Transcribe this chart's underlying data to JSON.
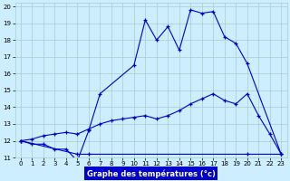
{
  "xlabel": "Graphe des températures (°c)",
  "xlim": [
    -0.5,
    23.5
  ],
  "ylim": [
    11,
    20.2
  ],
  "xticks": [
    0,
    1,
    2,
    3,
    4,
    5,
    6,
    7,
    8,
    9,
    10,
    11,
    12,
    13,
    14,
    15,
    16,
    17,
    18,
    19,
    20,
    21,
    22,
    23
  ],
  "yticks": [
    11,
    12,
    13,
    14,
    15,
    16,
    17,
    18,
    19,
    20
  ],
  "bg_color": "#cceeff",
  "line_color": "#0000cc",
  "grid_color": "#aacccc",
  "line1_x": [
    0,
    1,
    2,
    3,
    4,
    5,
    6,
    7,
    10,
    11,
    12,
    13,
    14,
    15,
    16,
    17,
    18,
    19,
    20,
    23
  ],
  "line1_y": [
    12,
    11.8,
    11.8,
    11.5,
    11.5,
    10.8,
    12.6,
    14.8,
    16.5,
    19.2,
    18.0,
    18.8,
    17.4,
    19.8,
    19.6,
    19.7,
    18.2,
    17.8,
    16.6,
    11.2
  ],
  "line2_x": [
    0,
    1,
    2,
    3,
    4,
    5,
    6,
    7,
    8,
    9,
    10,
    11,
    12,
    13,
    14,
    15,
    16,
    17,
    18,
    19,
    20,
    21,
    22,
    23
  ],
  "line2_y": [
    12,
    12.1,
    12.3,
    12.4,
    12.5,
    12.4,
    12.7,
    13.0,
    13.2,
    13.3,
    13.4,
    13.5,
    13.3,
    13.5,
    13.8,
    14.2,
    14.5,
    14.8,
    14.4,
    14.2,
    14.8,
    13.5,
    12.4,
    11.2
  ],
  "line3_x": [
    0,
    5,
    6,
    20,
    23
  ],
  "line3_y": [
    12,
    11.2,
    11.2,
    11.2,
    11.2
  ]
}
